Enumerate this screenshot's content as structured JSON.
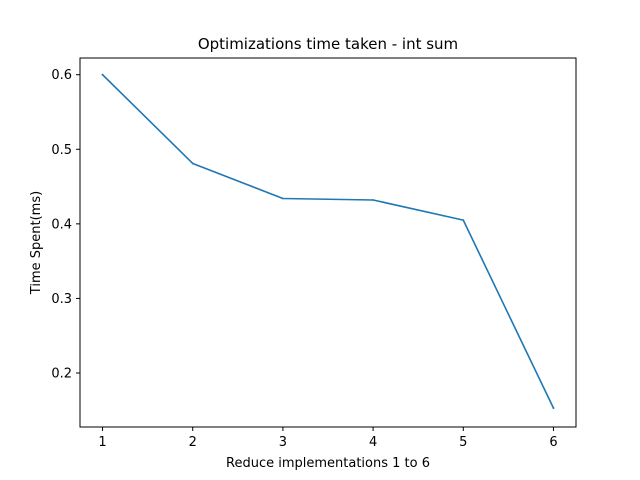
{
  "chart_data": {
    "type": "line",
    "title": "Optimizations time taken - int sum",
    "xlabel": "Reduce implementations 1 to 6",
    "ylabel": "Time Spent(ms)",
    "x": [
      1,
      2,
      3,
      4,
      5,
      6
    ],
    "series": [
      {
        "values": [
          0.6,
          0.481,
          0.434,
          0.432,
          0.405,
          0.153
        ]
      }
    ],
    "xticks": [
      1,
      2,
      3,
      4,
      5,
      6
    ],
    "xtick_labels": [
      "1",
      "2",
      "3",
      "4",
      "5",
      "6"
    ],
    "yticks": [
      0.2,
      0.3,
      0.4,
      0.5,
      0.6
    ],
    "ytick_labels": [
      "0.2",
      "0.3",
      "0.4",
      "0.5",
      "0.6"
    ],
    "xlim": [
      0.75,
      6.25
    ],
    "ylim": [
      0.1276,
      0.6224
    ],
    "grid": false,
    "colors": {
      "line": "#1f77b4",
      "axes": "#000000",
      "background": "#ffffff"
    }
  }
}
